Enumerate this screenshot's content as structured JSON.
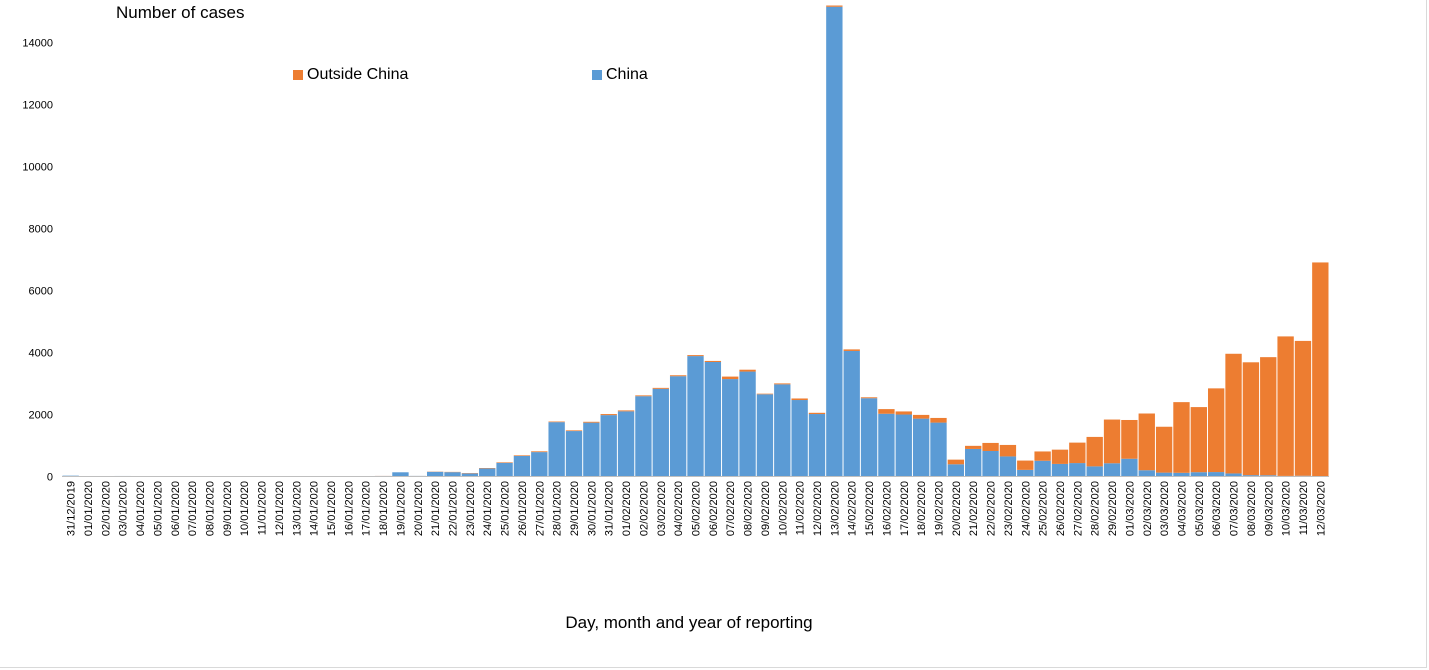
{
  "chart_data": {
    "type": "bar",
    "stacked": true,
    "ylabel": "Number of cases",
    "xlabel": "Day, month and year of reporting",
    "ylim": [
      0,
      15000
    ],
    "yticks": [
      0,
      2000,
      4000,
      6000,
      8000,
      10000,
      12000,
      14000
    ],
    "legend_placement": "top-center",
    "colors": {
      "china": "#5B9BD5",
      "outside": "#ED7D31"
    },
    "categories": [
      "31/12/2019",
      "01/01/2020",
      "02/01/2020",
      "03/01/2020",
      "04/01/2020",
      "05/01/2020",
      "06/01/2020",
      "07/01/2020",
      "08/01/2020",
      "09/01/2020",
      "10/01/2020",
      "11/01/2020",
      "12/01/2020",
      "13/01/2020",
      "14/01/2020",
      "15/01/2020",
      "16/01/2020",
      "17/01/2020",
      "18/01/2020",
      "19/01/2020",
      "20/01/2020",
      "21/01/2020",
      "22/01/2020",
      "23/01/2020",
      "24/01/2020",
      "25/01/2020",
      "26/01/2020",
      "27/01/2020",
      "28/01/2020",
      "29/01/2020",
      "30/01/2020",
      "31/01/2020",
      "01/02/2020",
      "02/02/2020",
      "03/02/2020",
      "04/02/2020",
      "05/02/2020",
      "06/02/2020",
      "07/02/2020",
      "08/02/2020",
      "09/02/2020",
      "10/02/2020",
      "11/02/2020",
      "12/02/2020",
      "13/02/2020",
      "14/02/2020",
      "15/02/2020",
      "16/02/2020",
      "17/02/2020",
      "18/02/2020",
      "19/02/2020",
      "20/02/2020",
      "21/02/2020",
      "22/02/2020",
      "23/02/2020",
      "24/02/2020",
      "25/02/2020",
      "26/02/2020",
      "27/02/2020",
      "28/02/2020",
      "29/02/2020",
      "01/03/2020",
      "02/03/2020",
      "03/03/2020",
      "04/03/2020",
      "05/03/2020",
      "06/03/2020",
      "07/03/2020",
      "08/03/2020",
      "09/03/2020",
      "10/03/2020",
      "11/03/2020",
      "12/03/2020"
    ],
    "series": [
      {
        "name": "China",
        "values": [
          27,
          0,
          0,
          17,
          0,
          15,
          0,
          0,
          0,
          0,
          0,
          0,
          0,
          1,
          0,
          4,
          4,
          4,
          17,
          136,
          19,
          151,
          140,
          97,
          259,
          441,
          665,
          787,
          1753,
          1466,
          1737,
          1980,
          2102,
          2590,
          2829,
          3235,
          3884,
          3694,
          3143,
          3385,
          2652,
          2973,
          2467,
          2015,
          15153,
          4050,
          2525,
          2024,
          1999,
          1867,
          1739,
          394,
          889,
          823,
          648,
          214,
          508,
          406,
          433,
          327,
          427,
          573,
          202,
          125,
          119,
          139,
          143,
          99,
          44,
          40,
          19,
          24,
          15
        ]
      },
      {
        "name": "Outside China",
        "values": [
          0,
          0,
          0,
          0,
          0,
          0,
          0,
          0,
          0,
          0,
          0,
          0,
          0,
          1,
          0,
          2,
          0,
          2,
          2,
          0,
          1,
          7,
          9,
          12,
          14,
          18,
          20,
          25,
          20,
          22,
          28,
          34,
          30,
          27,
          30,
          31,
          32,
          34,
          80,
          60,
          20,
          30,
          50,
          40,
          40,
          50,
          30,
          150,
          100,
          120,
          150,
          150,
          100,
          260,
          370,
          300,
          300,
          460,
          660,
          950,
          1410,
          1250,
          1830,
          1480,
          2280,
          2100,
          2700,
          3860,
          3640,
          3810,
          4500,
          4350,
          6890
        ]
      }
    ]
  }
}
